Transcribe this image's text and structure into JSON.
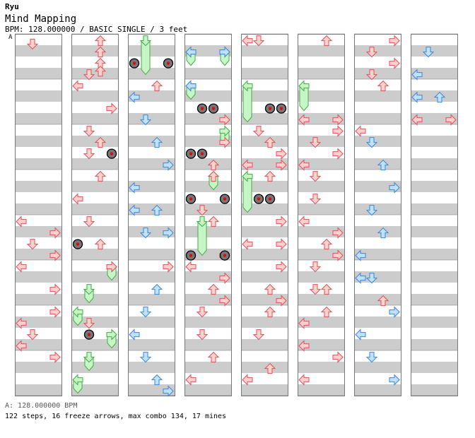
{
  "header": {
    "author": "Ryu",
    "song": "Mind Mapping",
    "meta": "BPM: 128.000000 / BASIC SINGLE / 3 feet",
    "bpm_marker": "A"
  },
  "footer": {
    "bpm_line": "A: 128.000000 BPM",
    "stats": "122 steps, 16 freeze arrows, max combo 134, 17 mines"
  },
  "colors": {
    "stripe": "#cccccc",
    "border": "#777777",
    "red_fill": "#ffd0d0",
    "red_stroke": "#e05050",
    "blue_fill": "#bfe0ff",
    "blue_stroke": "#3a86d8",
    "freeze_fill": "#c8f5c8",
    "freeze_stroke": "#3fae3f"
  },
  "chart_data": {
    "type": "table",
    "columns": 8,
    "measures_per_column": 8,
    "rows_per_measure": 4,
    "notes": [
      {
        "col": 0,
        "row": 0.9,
        "lane": "D",
        "color": "red",
        "type": "tap"
      },
      {
        "col": 0,
        "row": 16.6,
        "lane": "L",
        "color": "red",
        "type": "tap"
      },
      {
        "col": 0,
        "row": 17.6,
        "lane": "R",
        "color": "red",
        "type": "tap"
      },
      {
        "col": 0,
        "row": 18.6,
        "lane": "D",
        "color": "red",
        "type": "tap"
      },
      {
        "col": 0,
        "row": 19.6,
        "lane": "R",
        "color": "red",
        "type": "tap"
      },
      {
        "col": 0,
        "row": 20.6,
        "lane": "L",
        "color": "red",
        "type": "tap"
      },
      {
        "col": 0,
        "row": 22.6,
        "lane": "R",
        "color": "red",
        "type": "tap"
      },
      {
        "col": 0,
        "row": 24.6,
        "lane": "R",
        "color": "red",
        "type": "tap"
      },
      {
        "col": 0,
        "row": 25.6,
        "lane": "L",
        "color": "red",
        "type": "tap"
      },
      {
        "col": 0,
        "row": 26.6,
        "lane": "D",
        "color": "red",
        "type": "tap"
      },
      {
        "col": 0,
        "row": 27.6,
        "lane": "L",
        "color": "red",
        "type": "tap"
      },
      {
        "col": 0,
        "row": 28.6,
        "lane": "R",
        "color": "red",
        "type": "tap"
      },
      {
        "col": 1,
        "row": 0.6,
        "lane": "U",
        "color": "red",
        "type": "tap"
      },
      {
        "col": 1,
        "row": 1.6,
        "lane": "U",
        "color": "red",
        "type": "tap"
      },
      {
        "col": 1,
        "row": 2.6,
        "lane": "U",
        "color": "red",
        "type": "tap"
      },
      {
        "col": 1,
        "row": 3.3,
        "lane": "U",
        "color": "red",
        "type": "tap"
      },
      {
        "col": 1,
        "row": 3.6,
        "lane": "D",
        "color": "red",
        "type": "tap"
      },
      {
        "col": 1,
        "row": 4.6,
        "lane": "L",
        "color": "red",
        "type": "tap"
      },
      {
        "col": 1,
        "row": 6.6,
        "lane": "R",
        "color": "red",
        "type": "tap"
      },
      {
        "col": 1,
        "row": 8.6,
        "lane": "D",
        "color": "red",
        "type": "tap"
      },
      {
        "col": 1,
        "row": 9.6,
        "lane": "U",
        "color": "red",
        "type": "tap"
      },
      {
        "col": 1,
        "row": 10.6,
        "lane": "D",
        "color": "red",
        "type": "tap"
      },
      {
        "col": 1,
        "row": 12.6,
        "lane": "U",
        "color": "red",
        "type": "tap"
      },
      {
        "col": 1,
        "row": 14.6,
        "lane": "L",
        "color": "red",
        "type": "tap"
      },
      {
        "col": 1,
        "row": 16.6,
        "lane": "D",
        "color": "red",
        "type": "tap"
      },
      {
        "col": 1,
        "row": 18.6,
        "lane": "U",
        "color": "red",
        "type": "tap"
      },
      {
        "col": 1,
        "row": 20.6,
        "lane": "R",
        "color": "red",
        "type": "tap"
      },
      {
        "col": 1,
        "row": 25.6,
        "lane": "D",
        "color": "red",
        "type": "tap"
      },
      {
        "col": 2,
        "row": 4.6,
        "lane": "U",
        "color": "red",
        "type": "tap"
      },
      {
        "col": 2,
        "row": 5.6,
        "lane": "L",
        "color": "blue",
        "type": "tap"
      },
      {
        "col": 2,
        "row": 7.6,
        "lane": "D",
        "color": "blue",
        "type": "tap"
      },
      {
        "col": 2,
        "row": 9.6,
        "lane": "U",
        "color": "blue",
        "type": "tap"
      },
      {
        "col": 2,
        "row": 11.6,
        "lane": "R",
        "color": "blue",
        "type": "tap"
      },
      {
        "col": 2,
        "row": 13.6,
        "lane": "L",
        "color": "blue",
        "type": "tap"
      },
      {
        "col": 2,
        "row": 15.6,
        "lane": "L",
        "color": "blue",
        "type": "tap"
      },
      {
        "col": 2,
        "row": 15.6,
        "lane": "U",
        "color": "blue",
        "type": "tap"
      },
      {
        "col": 2,
        "row": 17.6,
        "lane": "D",
        "color": "blue",
        "type": "tap"
      },
      {
        "col": 2,
        "row": 17.6,
        "lane": "R",
        "color": "blue",
        "type": "tap"
      },
      {
        "col": 2,
        "row": 20.6,
        "lane": "R",
        "color": "red",
        "type": "tap"
      },
      {
        "col": 2,
        "row": 22.6,
        "lane": "U",
        "color": "blue",
        "type": "tap"
      },
      {
        "col": 2,
        "row": 24.6,
        "lane": "D",
        "color": "blue",
        "type": "tap"
      },
      {
        "col": 2,
        "row": 26.6,
        "lane": "L",
        "color": "blue",
        "type": "tap"
      },
      {
        "col": 2,
        "row": 28.6,
        "lane": "D",
        "color": "blue",
        "type": "tap"
      },
      {
        "col": 2,
        "row": 30.6,
        "lane": "U",
        "color": "blue",
        "type": "tap"
      },
      {
        "col": 2,
        "row": 31.6,
        "lane": "R",
        "color": "blue",
        "type": "tap"
      },
      {
        "col": 3,
        "row": 1.6,
        "lane": "L",
        "color": "blue",
        "type": "tap"
      },
      {
        "col": 3,
        "row": 1.6,
        "lane": "R",
        "color": "blue",
        "type": "tap"
      },
      {
        "col": 3,
        "row": 4.6,
        "lane": "L",
        "color": "blue",
        "type": "tap"
      },
      {
        "col": 3,
        "row": 7.6,
        "lane": "R",
        "color": "red",
        "type": "tap"
      },
      {
        "col": 3,
        "row": 9.6,
        "lane": "R",
        "color": "red",
        "type": "tap"
      },
      {
        "col": 3,
        "row": 11.6,
        "lane": "U",
        "color": "red",
        "type": "tap"
      },
      {
        "col": 3,
        "row": 12.6,
        "lane": "U",
        "color": "red",
        "type": "tap"
      },
      {
        "col": 3,
        "row": 15.6,
        "lane": "D",
        "color": "red",
        "type": "tap"
      },
      {
        "col": 3,
        "row": 16.6,
        "lane": "U",
        "color": "red",
        "type": "tap"
      },
      {
        "col": 3,
        "row": 19.6,
        "lane": "R",
        "color": "red",
        "type": "tap"
      },
      {
        "col": 3,
        "row": 20.6,
        "lane": "L",
        "color": "red",
        "type": "tap"
      },
      {
        "col": 3,
        "row": 21.6,
        "lane": "R",
        "color": "red",
        "type": "tap"
      },
      {
        "col": 3,
        "row": 22.6,
        "lane": "U",
        "color": "red",
        "type": "tap"
      },
      {
        "col": 3,
        "row": 23.6,
        "lane": "R",
        "color": "red",
        "type": "tap"
      },
      {
        "col": 3,
        "row": 24.6,
        "lane": "D",
        "color": "red",
        "type": "tap"
      },
      {
        "col": 3,
        "row": 26.6,
        "lane": "D",
        "color": "red",
        "type": "tap"
      },
      {
        "col": 3,
        "row": 28.6,
        "lane": "U",
        "color": "red",
        "type": "tap"
      },
      {
        "col": 3,
        "row": 30.6,
        "lane": "L",
        "color": "red",
        "type": "tap"
      },
      {
        "col": 4,
        "row": 0.6,
        "lane": "L",
        "color": "red",
        "type": "tap"
      },
      {
        "col": 4,
        "row": 0.6,
        "lane": "D",
        "color": "red",
        "type": "tap"
      },
      {
        "col": 4,
        "row": 8.6,
        "lane": "D",
        "color": "red",
        "type": "tap"
      },
      {
        "col": 4,
        "row": 9.6,
        "lane": "U",
        "color": "red",
        "type": "tap"
      },
      {
        "col": 4,
        "row": 10.6,
        "lane": "R",
        "color": "red",
        "type": "tap"
      },
      {
        "col": 4,
        "row": 11.6,
        "lane": "L",
        "color": "red",
        "type": "tap"
      },
      {
        "col": 4,
        "row": 11.6,
        "lane": "R",
        "color": "red",
        "type": "tap"
      },
      {
        "col": 4,
        "row": 12.6,
        "lane": "U",
        "color": "red",
        "type": "tap"
      },
      {
        "col": 4,
        "row": 16.6,
        "lane": "R",
        "color": "red",
        "type": "tap"
      },
      {
        "col": 4,
        "row": 18.6,
        "lane": "L",
        "color": "red",
        "type": "tap"
      },
      {
        "col": 4,
        "row": 18.6,
        "lane": "R",
        "color": "red",
        "type": "tap"
      },
      {
        "col": 4,
        "row": 20.6,
        "lane": "R",
        "color": "red",
        "type": "tap"
      },
      {
        "col": 4,
        "row": 22.6,
        "lane": "U",
        "color": "red",
        "type": "tap"
      },
      {
        "col": 4,
        "row": 23.6,
        "lane": "R",
        "color": "red",
        "type": "tap"
      },
      {
        "col": 4,
        "row": 24.6,
        "lane": "U",
        "color": "red",
        "type": "tap"
      },
      {
        "col": 4,
        "row": 26.6,
        "lane": "D",
        "color": "red",
        "type": "tap"
      },
      {
        "col": 4,
        "row": 29.6,
        "lane": "U",
        "color": "red",
        "type": "tap"
      },
      {
        "col": 4,
        "row": 30.6,
        "lane": "L",
        "color": "red",
        "type": "tap"
      },
      {
        "col": 5,
        "row": 0.6,
        "lane": "U",
        "color": "red",
        "type": "tap"
      },
      {
        "col": 5,
        "row": 7.6,
        "lane": "L",
        "color": "red",
        "type": "tap"
      },
      {
        "col": 5,
        "row": 7.6,
        "lane": "R",
        "color": "red",
        "type": "tap"
      },
      {
        "col": 5,
        "row": 8.6,
        "lane": "R",
        "color": "red",
        "type": "tap"
      },
      {
        "col": 5,
        "row": 9.6,
        "lane": "D",
        "color": "red",
        "type": "tap"
      },
      {
        "col": 5,
        "row": 10.6,
        "lane": "R",
        "color": "red",
        "type": "tap"
      },
      {
        "col": 5,
        "row": 11.6,
        "lane": "L",
        "color": "red",
        "type": "tap"
      },
      {
        "col": 5,
        "row": 12.6,
        "lane": "D",
        "color": "red",
        "type": "tap"
      },
      {
        "col": 5,
        "row": 14.6,
        "lane": "D",
        "color": "red",
        "type": "tap"
      },
      {
        "col": 5,
        "row": 16.6,
        "lane": "L",
        "color": "red",
        "type": "tap"
      },
      {
        "col": 5,
        "row": 17.6,
        "lane": "R",
        "color": "red",
        "type": "tap"
      },
      {
        "col": 5,
        "row": 18.6,
        "lane": "U",
        "color": "red",
        "type": "tap"
      },
      {
        "col": 5,
        "row": 19.6,
        "lane": "R",
        "color": "red",
        "type": "tap"
      },
      {
        "col": 5,
        "row": 20.6,
        "lane": "D",
        "color": "red",
        "type": "tap"
      },
      {
        "col": 5,
        "row": 22.6,
        "lane": "D",
        "color": "red",
        "type": "tap"
      },
      {
        "col": 5,
        "row": 22.6,
        "lane": "U",
        "color": "red",
        "type": "tap"
      },
      {
        "col": 5,
        "row": 24.6,
        "lane": "U",
        "color": "red",
        "type": "tap"
      },
      {
        "col": 5,
        "row": 25.6,
        "lane": "L",
        "color": "red",
        "type": "tap"
      },
      {
        "col": 5,
        "row": 27.6,
        "lane": "L",
        "color": "red",
        "type": "tap"
      },
      {
        "col": 5,
        "row": 28.6,
        "lane": "R",
        "color": "red",
        "type": "tap"
      },
      {
        "col": 5,
        "row": 30.6,
        "lane": "L",
        "color": "red",
        "type": "tap"
      },
      {
        "col": 6,
        "row": 0.6,
        "lane": "R",
        "color": "red",
        "type": "tap"
      },
      {
        "col": 6,
        "row": 1.6,
        "lane": "D",
        "color": "red",
        "type": "tap"
      },
      {
        "col": 6,
        "row": 2.6,
        "lane": "R",
        "color": "red",
        "type": "tap"
      },
      {
        "col": 6,
        "row": 3.6,
        "lane": "D",
        "color": "red",
        "type": "tap"
      },
      {
        "col": 6,
        "row": 4.6,
        "lane": "U",
        "color": "red",
        "type": "tap"
      },
      {
        "col": 6,
        "row": 8.6,
        "lane": "L",
        "color": "red",
        "type": "tap"
      },
      {
        "col": 6,
        "row": 9.6,
        "lane": "D",
        "color": "blue",
        "type": "tap"
      },
      {
        "col": 6,
        "row": 11.6,
        "lane": "U",
        "color": "blue",
        "type": "tap"
      },
      {
        "col": 6,
        "row": 13.6,
        "lane": "R",
        "color": "blue",
        "type": "tap"
      },
      {
        "col": 6,
        "row": 15.6,
        "lane": "D",
        "color": "blue",
        "type": "tap"
      },
      {
        "col": 6,
        "row": 17.6,
        "lane": "U",
        "color": "blue",
        "type": "tap"
      },
      {
        "col": 6,
        "row": 19.6,
        "lane": "L",
        "color": "blue",
        "type": "tap"
      },
      {
        "col": 6,
        "row": 21.6,
        "lane": "L",
        "color": "blue",
        "type": "tap"
      },
      {
        "col": 6,
        "row": 21.6,
        "lane": "D",
        "color": "blue",
        "type": "tap"
      },
      {
        "col": 6,
        "row": 23.6,
        "lane": "U",
        "color": "red",
        "type": "tap"
      },
      {
        "col": 6,
        "row": 24.6,
        "lane": "R",
        "color": "blue",
        "type": "tap"
      },
      {
        "col": 6,
        "row": 26.6,
        "lane": "L",
        "color": "blue",
        "type": "tap"
      },
      {
        "col": 6,
        "row": 28.6,
        "lane": "D",
        "color": "blue",
        "type": "tap"
      },
      {
        "col": 6,
        "row": 30.6,
        "lane": "R",
        "color": "blue",
        "type": "tap"
      },
      {
        "col": 7,
        "row": 1.6,
        "lane": "D",
        "color": "blue",
        "type": "tap"
      },
      {
        "col": 7,
        "row": 3.6,
        "lane": "L",
        "color": "blue",
        "type": "tap"
      },
      {
        "col": 7,
        "row": 5.6,
        "lane": "L",
        "color": "blue",
        "type": "tap"
      },
      {
        "col": 7,
        "row": 5.6,
        "lane": "U",
        "color": "blue",
        "type": "tap"
      },
      {
        "col": 7,
        "row": 7.6,
        "lane": "L",
        "color": "red",
        "type": "tap"
      },
      {
        "col": 7,
        "row": 7.6,
        "lane": "R",
        "color": "red",
        "type": "tap"
      }
    ],
    "freezes": [
      {
        "col": 2,
        "lane": "D",
        "start": 0.6,
        "end": 3.4
      },
      {
        "col": 3,
        "lane": "L",
        "start": 1.6,
        "end": 2.6
      },
      {
        "col": 3,
        "lane": "R",
        "start": 1.6,
        "end": 2.6
      },
      {
        "col": 3,
        "lane": "L",
        "start": 4.6,
        "end": 5.6
      },
      {
        "col": 3,
        "lane": "R",
        "start": 8.6,
        "end": 9.6
      },
      {
        "col": 3,
        "lane": "U",
        "start": 12.6,
        "end": 13.6
      },
      {
        "col": 3,
        "lane": "D",
        "start": 16.6,
        "end": 19.4
      },
      {
        "col": 4,
        "lane": "L",
        "start": 4.6,
        "end": 7.6
      },
      {
        "col": 4,
        "lane": "L",
        "start": 12.6,
        "end": 15.6
      },
      {
        "col": 5,
        "lane": "L",
        "start": 4.6,
        "end": 6.6
      },
      {
        "col": 1,
        "lane": "R",
        "start": 20.6,
        "end": 21.6
      },
      {
        "col": 1,
        "lane": "D",
        "start": 22.6,
        "end": 23.6
      },
      {
        "col": 1,
        "lane": "L",
        "start": 24.6,
        "end": 25.6
      },
      {
        "col": 1,
        "lane": "R",
        "start": 26.6,
        "end": 27.6
      },
      {
        "col": 1,
        "lane": "D",
        "start": 28.6,
        "end": 29.6
      },
      {
        "col": 1,
        "lane": "L",
        "start": 30.6,
        "end": 31.6
      }
    ],
    "mines": [
      {
        "col": 2,
        "row": 2.6,
        "lane": "L"
      },
      {
        "col": 2,
        "row": 2.6,
        "lane": "R"
      },
      {
        "col": 3,
        "row": 6.6,
        "lane": "D"
      },
      {
        "col": 3,
        "row": 6.6,
        "lane": "U"
      },
      {
        "col": 4,
        "row": 6.6,
        "lane": "U"
      },
      {
        "col": 4,
        "row": 6.6,
        "lane": "R"
      },
      {
        "col": 1,
        "row": 10.6,
        "lane": "R"
      },
      {
        "col": 3,
        "row": 10.6,
        "lane": "L"
      },
      {
        "col": 3,
        "row": 10.6,
        "lane": "D"
      },
      {
        "col": 3,
        "row": 14.6,
        "lane": "L"
      },
      {
        "col": 3,
        "row": 14.6,
        "lane": "R"
      },
      {
        "col": 4,
        "row": 14.6,
        "lane": "D"
      },
      {
        "col": 4,
        "row": 14.6,
        "lane": "U"
      },
      {
        "col": 1,
        "row": 18.6,
        "lane": "L"
      },
      {
        "col": 3,
        "row": 19.6,
        "lane": "L"
      },
      {
        "col": 3,
        "row": 19.6,
        "lane": "R"
      },
      {
        "col": 1,
        "row": 26.6,
        "lane": "D"
      }
    ]
  }
}
